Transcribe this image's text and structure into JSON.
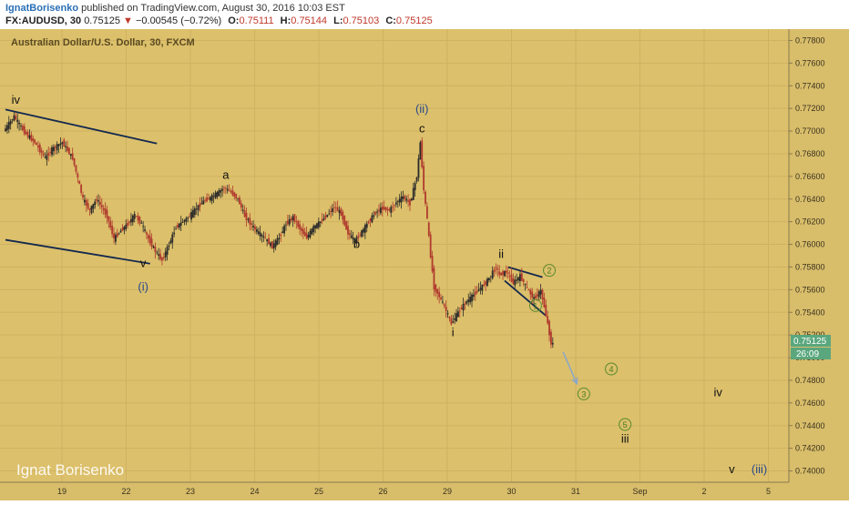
{
  "header": {
    "author": "IgnatBorisenko",
    "published": "published on TradingView.com, August 30, 2016 10:03 EST",
    "symbol": "FX:AUDUSD, 30",
    "last": "0.75125",
    "change_arrow": "▼",
    "change": "−0.00545 (−0.72%)",
    "o_label": "O:",
    "o_value": "0.75111",
    "h_label": "H:",
    "h_value": "0.75144",
    "l_label": "L:",
    "l_value": "0.75103",
    "c_label": "C:",
    "c_value": "0.75125"
  },
  "chart_data": {
    "type": "candlestick",
    "title": "Australian Dollar/U.S. Dollar, 30, FXCM",
    "watermark": "Ignat Borisenko",
    "ylim": [
      0.739,
      0.779
    ],
    "y_ticks": [
      "0.77800",
      "0.77600",
      "0.77400",
      "0.77200",
      "0.77000",
      "0.76800",
      "0.76600",
      "0.76400",
      "0.76200",
      "0.76000",
      "0.75800",
      "0.75600",
      "0.75400",
      "0.75200",
      "0.75000",
      "0.74800",
      "0.74600",
      "0.74400",
      "0.74200",
      "0.74000"
    ],
    "x_ticks": [
      "19",
      "22",
      "23",
      "24",
      "25",
      "26",
      "29",
      "30",
      "31",
      "Sep",
      "2",
      "5"
    ],
    "price_badge": "0.75125",
    "countdown_badge": "26:09",
    "price_path": [
      [
        0,
        0.77
      ],
      [
        3,
        0.7713
      ],
      [
        6,
        0.7699
      ],
      [
        9,
        0.769
      ],
      [
        12,
        0.7676
      ],
      [
        14,
        0.7684
      ],
      [
        17,
        0.769
      ],
      [
        20,
        0.7676
      ],
      [
        23,
        0.764
      ],
      [
        25,
        0.763
      ],
      [
        27,
        0.764
      ],
      [
        30,
        0.7625
      ],
      [
        32,
        0.7605
      ],
      [
        34,
        0.7612
      ],
      [
        36,
        0.7618
      ],
      [
        38,
        0.7626
      ],
      [
        40,
        0.7618
      ],
      [
        42,
        0.7605
      ],
      [
        44,
        0.7594
      ],
      [
        46,
        0.7586
      ],
      [
        48,
        0.76
      ],
      [
        50,
        0.7615
      ],
      [
        52,
        0.762
      ],
      [
        54,
        0.7625
      ],
      [
        56,
        0.7632
      ],
      [
        58,
        0.7638
      ],
      [
        60,
        0.7641
      ],
      [
        62,
        0.7645
      ],
      [
        64,
        0.765
      ],
      [
        66,
        0.7646
      ],
      [
        68,
        0.764
      ],
      [
        70,
        0.7625
      ],
      [
        72,
        0.7617
      ],
      [
        74,
        0.761
      ],
      [
        76,
        0.7605
      ],
      [
        78,
        0.7598
      ],
      [
        80,
        0.7606
      ],
      [
        82,
        0.7618
      ],
      [
        84,
        0.7624
      ],
      [
        86,
        0.7614
      ],
      [
        88,
        0.7606
      ],
      [
        90,
        0.7615
      ],
      [
        92,
        0.762
      ],
      [
        94,
        0.7626
      ],
      [
        96,
        0.7633
      ],
      [
        98,
        0.7627
      ],
      [
        100,
        0.761
      ],
      [
        102,
        0.7603
      ],
      [
        104,
        0.7611
      ],
      [
        106,
        0.762
      ],
      [
        108,
        0.7628
      ],
      [
        110,
        0.7632
      ],
      [
        112,
        0.763
      ],
      [
        114,
        0.7637
      ],
      [
        116,
        0.7642
      ],
      [
        118,
        0.7636
      ],
      [
        120,
        0.766
      ],
      [
        121,
        0.769
      ],
      [
        122,
        0.7648
      ],
      [
        123,
        0.7622
      ],
      [
        124,
        0.759
      ],
      [
        125,
        0.7562
      ],
      [
        126,
        0.7557
      ],
      [
        128,
        0.7545
      ],
      [
        130,
        0.753
      ],
      [
        132,
        0.754
      ],
      [
        134,
        0.7548
      ],
      [
        136,
        0.7554
      ],
      [
        138,
        0.756
      ],
      [
        140,
        0.7566
      ],
      [
        142,
        0.7575
      ],
      [
        143,
        0.758
      ],
      [
        144,
        0.7573
      ],
      [
        146,
        0.7576
      ],
      [
        148,
        0.7566
      ],
      [
        150,
        0.7572
      ],
      [
        152,
        0.7561
      ],
      [
        154,
        0.7552
      ],
      [
        156,
        0.7559
      ],
      [
        157,
        0.7545
      ],
      [
        158,
        0.753
      ],
      [
        159,
        0.75125
      ]
    ],
    "annotations": [
      {
        "label": "iv",
        "x": 3,
        "y": 0.7724,
        "color": "#111"
      },
      {
        "label": "a",
        "x": 64,
        "y": 0.7658,
        "color": "#111"
      },
      {
        "label": "v",
        "x": 40,
        "y": 0.758,
        "color": "#111"
      },
      {
        "label": "(i)",
        "x": 40,
        "y": 0.7559,
        "color": "#2a4a8c"
      },
      {
        "label": "b",
        "x": 102,
        "y": 0.7597,
        "color": "#111"
      },
      {
        "label": "(ii)",
        "x": 121,
        "y": 0.7716,
        "color": "#2a4a8c"
      },
      {
        "label": "c",
        "x": 121,
        "y": 0.7699,
        "color": "#111"
      },
      {
        "label": "i",
        "x": 130,
        "y": 0.7519,
        "color": "#111"
      },
      {
        "label": "ii",
        "x": 144,
        "y": 0.7588,
        "color": "#111"
      },
      {
        "label": "iv",
        "x": 207,
        "y": 0.7466,
        "color": "#111"
      },
      {
        "label": "iii",
        "x": 180,
        "y": 0.7425,
        "color": "#111"
      },
      {
        "label": "v",
        "x": 211,
        "y": 0.7398,
        "color": "#111"
      },
      {
        "label": "(iii)",
        "x": 219,
        "y": 0.7398,
        "color": "#2a4a8c"
      }
    ],
    "circled_labels": [
      {
        "label": "1",
        "x": 154,
        "y": 0.7546
      },
      {
        "label": "2",
        "x": 158,
        "y": 0.7577
      },
      {
        "label": "3",
        "x": 168,
        "y": 0.7468
      },
      {
        "label": "4",
        "x": 176,
        "y": 0.749
      },
      {
        "label": "5",
        "x": 180,
        "y": 0.7441
      }
    ],
    "trendlines": [
      {
        "from": [
          0,
          0.7719
        ],
        "to": [
          44,
          0.7689
        ]
      },
      {
        "from": [
          0,
          0.7604
        ],
        "to": [
          42,
          0.7583
        ]
      },
      {
        "from": [
          146,
          0.758
        ],
        "to": [
          156,
          0.7571
        ]
      },
      {
        "from": [
          145,
          0.7568
        ],
        "to": [
          157,
          0.7537
        ]
      }
    ],
    "projection_arrow": {
      "from": [
        162,
        0.7505
      ],
      "to": [
        166,
        0.7477
      ]
    }
  }
}
